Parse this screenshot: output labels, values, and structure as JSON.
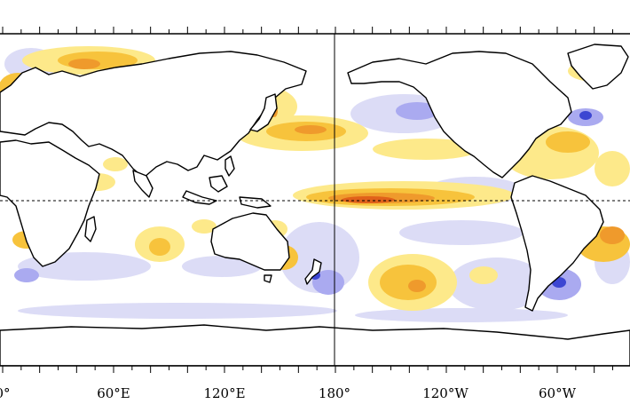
{
  "map": {
    "x_axis": {
      "tick_labels": [
        "0°",
        "60°E",
        "120°E",
        "180°",
        "120°W",
        "60°W"
      ]
    },
    "equator_line": "dashed",
    "dateline_line": "solid",
    "colors": {
      "ocean": "#ffffff",
      "coast": "#000000",
      "warm_light": "#fde98a",
      "warm": "#f7c33c",
      "warm_strong": "#ef9a2c",
      "warm_max": "#e0611a",
      "cool_light": "#dcdcf6",
      "cool": "#aaaaf0",
      "cool_strong": "#3c46d2"
    }
  }
}
